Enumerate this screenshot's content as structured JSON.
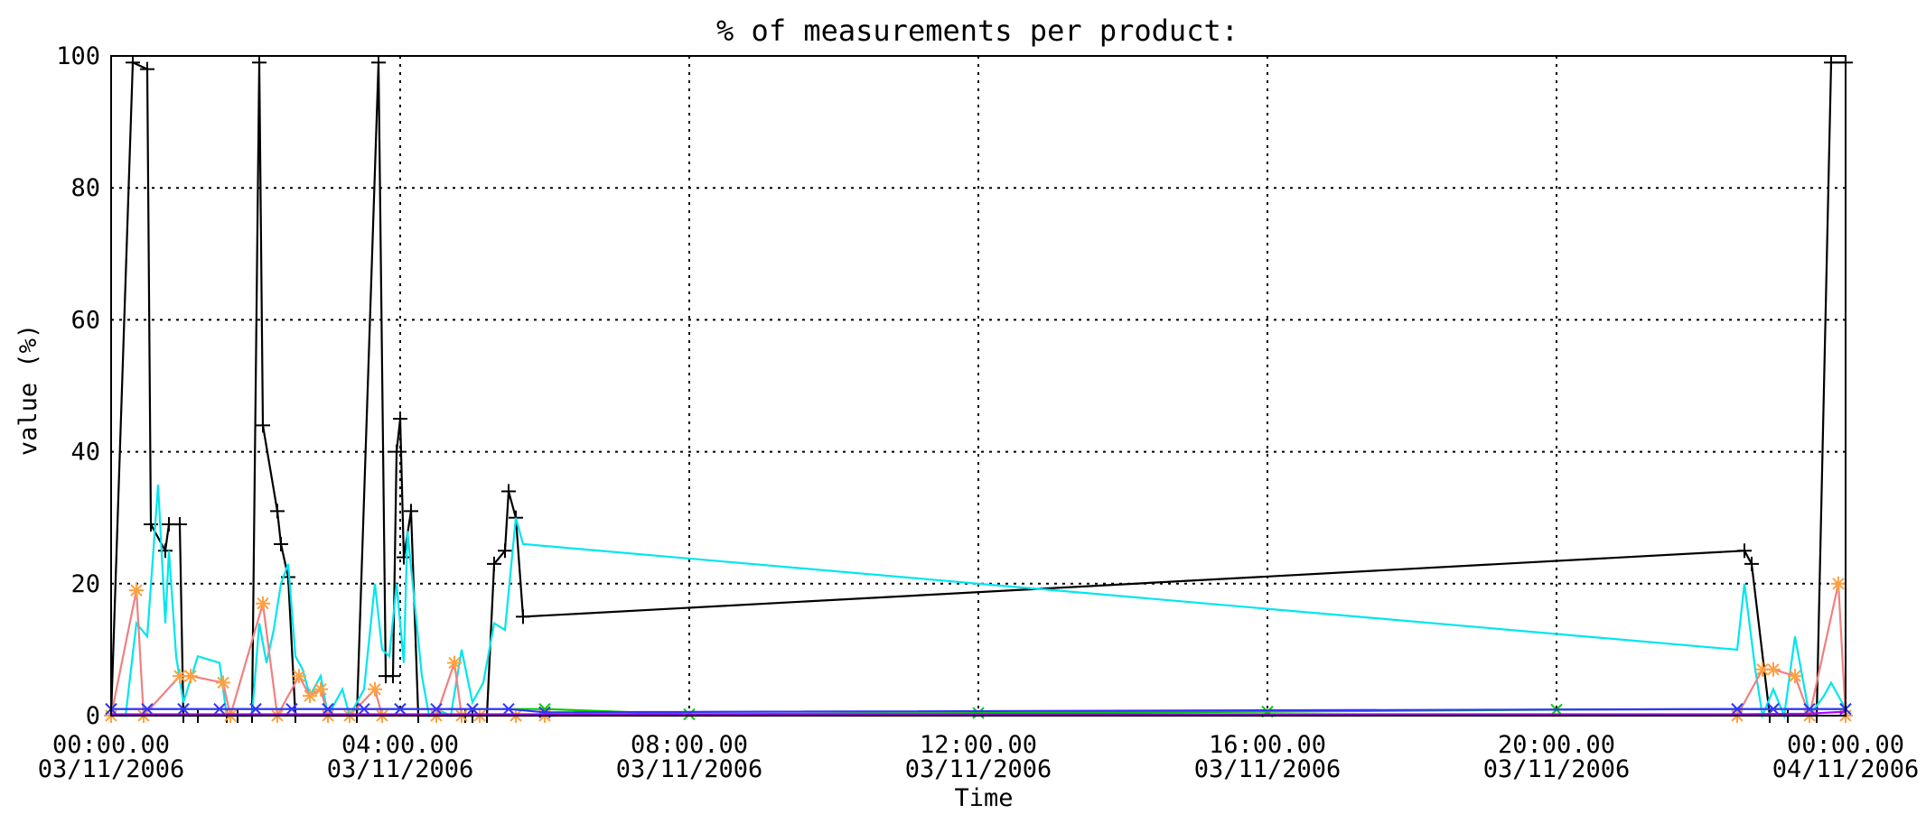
{
  "chart_data": {
    "type": "line",
    "title": "% of measurements per product:",
    "xlabel": "Time",
    "ylabel": "value (%)",
    "xlim": [
      "2006-11-03 00:00",
      "2006-11-04 00:00"
    ],
    "ylim": [
      0,
      100
    ],
    "grid": true,
    "x_ticks": [
      {
        "t": 0,
        "line1": "00:00.00",
        "line2": "03/11/2006"
      },
      {
        "t": 4,
        "line1": "04:00.00",
        "line2": "03/11/2006"
      },
      {
        "t": 8,
        "line1": "08:00.00",
        "line2": "03/11/2006"
      },
      {
        "t": 12,
        "line1": "12:00.00",
        "line2": "03/11/2006"
      },
      {
        "t": 16,
        "line1": "16:00.00",
        "line2": "03/11/2006"
      },
      {
        "t": 20,
        "line1": "20:00.00",
        "line2": "03/11/2006"
      },
      {
        "t": 24,
        "line1": "00:00.00",
        "line2": "04/11/2006"
      }
    ],
    "y_ticks": [
      "0",
      "20",
      "40",
      "60",
      "80",
      "100"
    ],
    "series": [
      {
        "color": "#000000",
        "marker": "plus",
        "points": [
          [
            0.0,
            0
          ],
          [
            0.3,
            99
          ],
          [
            0.5,
            98
          ],
          [
            0.55,
            29
          ],
          [
            0.75,
            25
          ],
          [
            0.8,
            29
          ],
          [
            0.95,
            29
          ],
          [
            1.0,
            0
          ],
          [
            1.2,
            0
          ],
          [
            1.6,
            0
          ],
          [
            1.75,
            0
          ],
          [
            1.95,
            0
          ],
          [
            2.05,
            99
          ],
          [
            2.1,
            44
          ],
          [
            2.3,
            31
          ],
          [
            2.35,
            26
          ],
          [
            2.45,
            21
          ],
          [
            2.55,
            0
          ],
          [
            3.0,
            0
          ],
          [
            3.4,
            0
          ],
          [
            3.7,
            99
          ],
          [
            3.8,
            6
          ],
          [
            3.9,
            6
          ],
          [
            3.95,
            40
          ],
          [
            4.0,
            45
          ],
          [
            4.05,
            24
          ],
          [
            4.15,
            31
          ],
          [
            4.25,
            0
          ],
          [
            4.9,
            0
          ],
          [
            5.0,
            0
          ],
          [
            5.2,
            0
          ],
          [
            5.3,
            23
          ],
          [
            5.45,
            25
          ],
          [
            5.5,
            34
          ],
          [
            5.6,
            30
          ],
          [
            5.7,
            15
          ],
          [
            22.6,
            25
          ],
          [
            22.7,
            23
          ],
          [
            22.95,
            0
          ],
          [
            23.2,
            0
          ],
          [
            23.6,
            0
          ],
          [
            23.8,
            99
          ],
          [
            24.0,
            99
          ]
        ]
      },
      {
        "color": "#00e5ee",
        "marker": "none",
        "points": [
          [
            0.0,
            0
          ],
          [
            0.2,
            0
          ],
          [
            0.35,
            14
          ],
          [
            0.5,
            12
          ],
          [
            0.65,
            35
          ],
          [
            0.75,
            14
          ],
          [
            0.8,
            25
          ],
          [
            0.9,
            9
          ],
          [
            1.0,
            2
          ],
          [
            1.2,
            9
          ],
          [
            1.5,
            8
          ],
          [
            1.6,
            0
          ],
          [
            1.8,
            0
          ],
          [
            1.95,
            0
          ],
          [
            2.05,
            14
          ],
          [
            2.15,
            8
          ],
          [
            2.25,
            13
          ],
          [
            2.35,
            20
          ],
          [
            2.45,
            23
          ],
          [
            2.55,
            9
          ],
          [
            2.65,
            7
          ],
          [
            2.75,
            3
          ],
          [
            2.9,
            6
          ],
          [
            3.0,
            0
          ],
          [
            3.2,
            4
          ],
          [
            3.3,
            0
          ],
          [
            3.5,
            4
          ],
          [
            3.65,
            20
          ],
          [
            3.75,
            10
          ],
          [
            3.85,
            9
          ],
          [
            3.95,
            20
          ],
          [
            4.05,
            8
          ],
          [
            4.1,
            28
          ],
          [
            4.2,
            17
          ],
          [
            4.3,
            6
          ],
          [
            4.4,
            0
          ],
          [
            4.5,
            1
          ],
          [
            4.7,
            0
          ],
          [
            4.85,
            10
          ],
          [
            5.0,
            2
          ],
          [
            5.15,
            5
          ],
          [
            5.3,
            14
          ],
          [
            5.45,
            13
          ],
          [
            5.6,
            30
          ],
          [
            5.7,
            26
          ],
          [
            22.5,
            10
          ],
          [
            22.6,
            20
          ],
          [
            22.75,
            7
          ],
          [
            22.85,
            0
          ],
          [
            23.0,
            4
          ],
          [
            23.15,
            0
          ],
          [
            23.3,
            12
          ],
          [
            23.5,
            0
          ],
          [
            23.7,
            3
          ],
          [
            23.8,
            5
          ],
          [
            24.0,
            1
          ]
        ]
      },
      {
        "color": "#f08080",
        "marker": "star",
        "points": [
          [
            0.0,
            0
          ],
          [
            0.35,
            19
          ],
          [
            0.45,
            0
          ],
          [
            0.95,
            6
          ],
          [
            1.1,
            6
          ],
          [
            1.55,
            5
          ],
          [
            1.65,
            0
          ],
          [
            2.1,
            17
          ],
          [
            2.3,
            0
          ],
          [
            2.6,
            6
          ],
          [
            2.75,
            3
          ],
          [
            2.9,
            4
          ],
          [
            3.0,
            0
          ],
          [
            3.3,
            0
          ],
          [
            3.65,
            4
          ],
          [
            3.75,
            0
          ],
          [
            4.5,
            0
          ],
          [
            4.75,
            8
          ],
          [
            4.85,
            0
          ],
          [
            5.1,
            0
          ],
          [
            5.6,
            0
          ],
          [
            6.0,
            0
          ],
          [
            22.5,
            0
          ],
          [
            22.85,
            7
          ],
          [
            23.0,
            7
          ],
          [
            23.3,
            6
          ],
          [
            23.5,
            0
          ],
          [
            23.9,
            20
          ],
          [
            24.0,
            0
          ]
        ]
      },
      {
        "color": "#00cc00",
        "marker": "cross",
        "points": [
          [
            0.0,
            1
          ],
          [
            1.0,
            1
          ],
          [
            2.0,
            1
          ],
          [
            3.0,
            1
          ],
          [
            4.0,
            1
          ],
          [
            5.0,
            1
          ],
          [
            6.0,
            1
          ],
          [
            8.0,
            0.2
          ],
          [
            12.0,
            0.4
          ],
          [
            16.0,
            0.6
          ],
          [
            20.0,
            0.9
          ],
          [
            22.5,
            1
          ],
          [
            23.0,
            1
          ],
          [
            24.0,
            1
          ]
        ]
      },
      {
        "color": "#3333ff",
        "marker": "cross",
        "points": [
          [
            0.0,
            1
          ],
          [
            0.5,
            1
          ],
          [
            1.0,
            1
          ],
          [
            1.5,
            1
          ],
          [
            2.0,
            1
          ],
          [
            2.5,
            1
          ],
          [
            3.0,
            1
          ],
          [
            3.5,
            1
          ],
          [
            4.0,
            1
          ],
          [
            4.5,
            1
          ],
          [
            5.0,
            1
          ],
          [
            5.5,
            1
          ],
          [
            6.0,
            0.5
          ],
          [
            22.5,
            1
          ],
          [
            23.0,
            1
          ],
          [
            23.5,
            1
          ],
          [
            24.0,
            1
          ]
        ]
      },
      {
        "color": "#b300ff",
        "marker": "none",
        "points": [
          [
            0.0,
            0.2
          ],
          [
            1.0,
            0.2
          ],
          [
            2.0,
            0.2
          ],
          [
            3.0,
            0.2
          ],
          [
            4.0,
            0.2
          ],
          [
            5.0,
            0.2
          ],
          [
            6.0,
            0.2
          ],
          [
            22.5,
            0.2
          ],
          [
            23.5,
            0.3
          ],
          [
            24.0,
            0.6
          ]
        ]
      }
    ]
  }
}
